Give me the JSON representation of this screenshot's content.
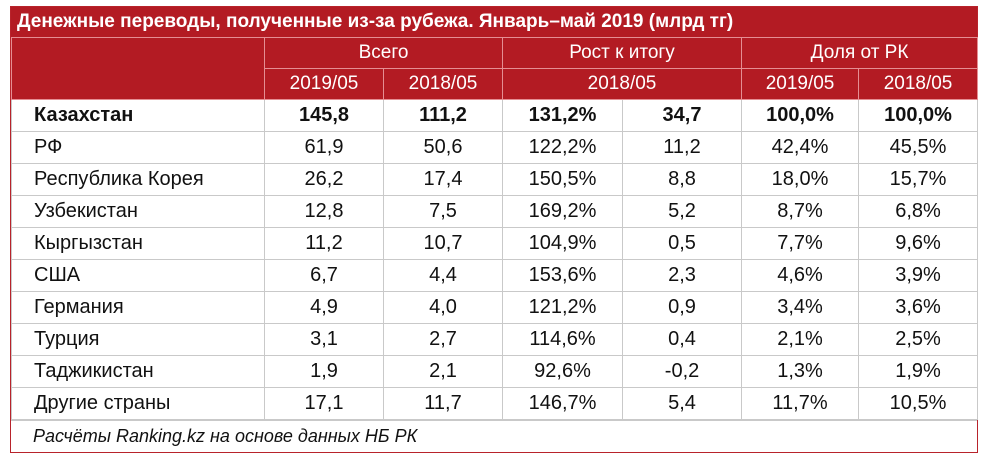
{
  "title": "Денежные переводы, полученные из-за рубежа. Январь–май 2019 (млрд тг)",
  "headers": {
    "total": "Всего",
    "growth": "Рост к итогу",
    "share": "Доля от РК",
    "total_y1": "2019/05",
    "total_y2": "2018/05",
    "growth_y": "2018/05",
    "share_y1": "2019/05",
    "share_y2": "2018/05"
  },
  "rows": [
    {
      "name": "Казахстан",
      "v2019": "145,8",
      "v2018": "111,2",
      "growth_pct": "131,2%",
      "growth_abs": "34,7",
      "share2019": "100,0%",
      "share2018": "100,0%"
    },
    {
      "name": "РФ",
      "v2019": "61,9",
      "v2018": "50,6",
      "growth_pct": "122,2%",
      "growth_abs": "11,2",
      "share2019": "42,4%",
      "share2018": "45,5%"
    },
    {
      "name": "Республика Корея",
      "v2019": "26,2",
      "v2018": "17,4",
      "growth_pct": "150,5%",
      "growth_abs": "8,8",
      "share2019": "18,0%",
      "share2018": "15,7%"
    },
    {
      "name": "Узбекистан",
      "v2019": "12,8",
      "v2018": "7,5",
      "growth_pct": "169,2%",
      "growth_abs": "5,2",
      "share2019": "8,7%",
      "share2018": "6,8%"
    },
    {
      "name": "Кыргызстан",
      "v2019": "11,2",
      "v2018": "10,7",
      "growth_pct": "104,9%",
      "growth_abs": "0,5",
      "share2019": "7,7%",
      "share2018": "9,6%"
    },
    {
      "name": "США",
      "v2019": "6,7",
      "v2018": "4,4",
      "growth_pct": "153,6%",
      "growth_abs": "2,3",
      "share2019": "4,6%",
      "share2018": "3,9%"
    },
    {
      "name": "Германия",
      "v2019": "4,9",
      "v2018": "4,0",
      "growth_pct": "121,2%",
      "growth_abs": "0,9",
      "share2019": "3,4%",
      "share2018": "3,6%"
    },
    {
      "name": "Турция",
      "v2019": "3,1",
      "v2018": "2,7",
      "growth_pct": "114,6%",
      "growth_abs": "0,4",
      "share2019": "2,1%",
      "share2018": "2,5%"
    },
    {
      "name": "Таджикистан",
      "v2019": "1,9",
      "v2018": "2,1",
      "growth_pct": "92,6%",
      "growth_abs": "-0,2",
      "share2019": "1,3%",
      "share2018": "1,9%"
    },
    {
      "name": "Другие страны",
      "v2019": "17,1",
      "v2018": "11,7",
      "growth_pct": "146,7%",
      "growth_abs": "5,4",
      "share2019": "11,7%",
      "share2018": "10,5%"
    }
  ],
  "note": "Расчёты Ranking.kz на основе данных НБ РК",
  "colors": {
    "header_bg": "#b31b23",
    "header_text": "#ffffff"
  }
}
